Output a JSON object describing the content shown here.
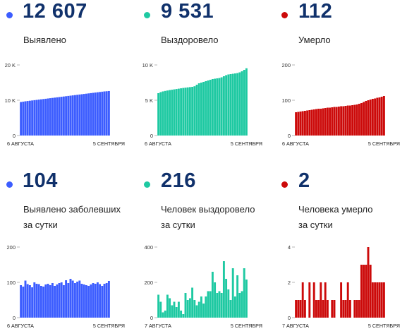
{
  "colors": {
    "blue": "#3c5dff",
    "green": "#1ec9a2",
    "red": "#cc0a0a",
    "number": "#10316b"
  },
  "panels": [
    {
      "id": "cases-total",
      "color": "blue",
      "value": "12 607",
      "label_lines": [
        "Выявлено"
      ],
      "chart_data": {
        "type": "bar",
        "ylim": [
          0,
          20000
        ],
        "yticks": [
          "0",
          "10 K",
          "20 K"
        ],
        "ytick_values": [
          0,
          10000,
          20000
        ],
        "x_start": "6 АВГУСТА",
        "x_end": "5 СЕНТЯБРЯ",
        "values": [
          9500,
          9600,
          9700,
          9780,
          9860,
          9940,
          10020,
          10100,
          10180,
          10260,
          10340,
          10420,
          10500,
          10580,
          10660,
          10740,
          10820,
          10900,
          10980,
          11060,
          11140,
          11220,
          11300,
          11380,
          11460,
          11540,
          11620,
          11700,
          11780,
          11860,
          11940,
          12020,
          12100,
          12180,
          12260,
          12340,
          12420,
          12500,
          12550,
          12607
        ]
      }
    },
    {
      "id": "recovered-total",
      "color": "green",
      "value": "9 531",
      "label_lines": [
        "Выздоровело"
      ],
      "chart_data": {
        "type": "bar",
        "ylim": [
          0,
          10000
        ],
        "yticks": [
          "0",
          "5 K",
          "10 K"
        ],
        "ytick_values": [
          0,
          5000,
          10000
        ],
        "x_start": "6 АВГУСТА",
        "x_end": "5 СЕНТЯБРЯ",
        "values": [
          6000,
          6150,
          6250,
          6320,
          6380,
          6440,
          6490,
          6540,
          6590,
          6640,
          6690,
          6740,
          6780,
          6820,
          6860,
          6900,
          6980,
          7200,
          7400,
          7500,
          7600,
          7700,
          7800,
          7900,
          8000,
          8050,
          8100,
          8150,
          8250,
          8400,
          8550,
          8650,
          8700,
          8750,
          8800,
          8850,
          8950,
          9100,
          9300,
          9531
        ]
      }
    },
    {
      "id": "deaths-total",
      "color": "red",
      "value": "112",
      "label_lines": [
        "Умерло"
      ],
      "chart_data": {
        "type": "bar",
        "ylim": [
          0,
          200
        ],
        "yticks": [
          "0",
          "100",
          "200"
        ],
        "ytick_values": [
          0,
          100,
          200
        ],
        "x_start": "6 АВГУСТА",
        "x_end": "5 СЕНТЯБРЯ",
        "values": [
          66,
          67,
          68,
          69,
          70,
          71,
          72,
          73,
          74,
          75,
          76,
          76,
          77,
          78,
          79,
          79,
          80,
          81,
          81,
          82,
          83,
          83,
          84,
          85,
          85,
          86,
          87,
          88,
          90,
          92,
          95,
          98,
          100,
          102,
          104,
          105,
          107,
          108,
          110,
          112
        ]
      }
    },
    {
      "id": "cases-daily",
      "color": "blue",
      "value": "104",
      "label_lines": [
        "Выявлено заболевших",
        "за сутки"
      ],
      "chart_data": {
        "type": "bar",
        "ylim": [
          0,
          200
        ],
        "yticks": [
          "0",
          "100",
          "200"
        ],
        "ytick_values": [
          0,
          100,
          200
        ],
        "x_start": "6 АВГУСТА",
        "x_end": "5 СЕНТЯБРЯ",
        "values": [
          92,
          88,
          105,
          95,
          92,
          86,
          100,
          96,
          95,
          90,
          88,
          94,
          96,
          92,
          98,
          90,
          94,
          98,
          100,
          92,
          106,
          98,
          110,
          105,
          98,
          102,
          105,
          96,
          94,
          92,
          90,
          94,
          98,
          96,
          100,
          95,
          90,
          96,
          98,
          104
        ]
      }
    },
    {
      "id": "recovered-daily",
      "color": "green",
      "value": "216",
      "label_lines": [
        "Человек выздоровело",
        "за сутки"
      ],
      "chart_data": {
        "type": "bar",
        "ylim": [
          0,
          400
        ],
        "yticks": [
          "0",
          "200",
          "400"
        ],
        "ytick_values": [
          0,
          200,
          400
        ],
        "x_start": "7 АВГУСТА",
        "x_end": "5 СЕНТЯБРЯ",
        "values": [
          130,
          90,
          30,
          40,
          130,
          110,
          70,
          90,
          60,
          90,
          40,
          20,
          140,
          100,
          110,
          170,
          100,
          70,
          90,
          120,
          80,
          120,
          150,
          150,
          260,
          200,
          140,
          150,
          140,
          320,
          220,
          160,
          100,
          280,
          120,
          240,
          140,
          150,
          280,
          216
        ]
      }
    },
    {
      "id": "deaths-daily",
      "color": "red",
      "value": "2",
      "label_lines": [
        "Человека умерло",
        "за сутки"
      ],
      "chart_data": {
        "type": "bar",
        "ylim": [
          0,
          4
        ],
        "yticks": [
          "0",
          "2",
          "4"
        ],
        "ytick_values": [
          0,
          2,
          4
        ],
        "x_start": "7 АВГУСТА",
        "x_end": "5 СЕНТЯБРЯ",
        "values": [
          1,
          1,
          1,
          2,
          1,
          0,
          2,
          0,
          2,
          1,
          1,
          2,
          1,
          2,
          1,
          0,
          1,
          1,
          0,
          0,
          2,
          1,
          1,
          2,
          1,
          0,
          1,
          1,
          1,
          3,
          3,
          3,
          4,
          3,
          2,
          2,
          2,
          2,
          2,
          2
        ]
      }
    }
  ]
}
